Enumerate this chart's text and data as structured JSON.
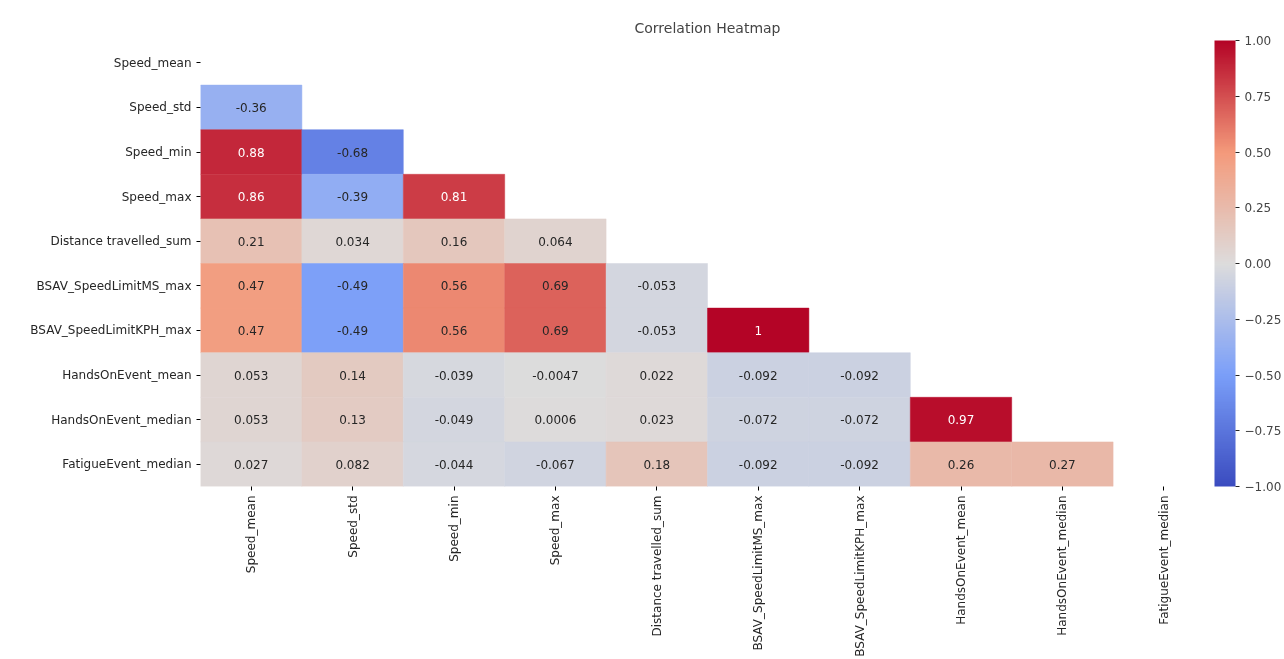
{
  "chart_data": {
    "type": "heatmap",
    "title": "Correlation Heatmap",
    "categories": [
      "Speed_mean",
      "Speed_std",
      "Speed_min",
      "Speed_max",
      "Distance travelled_sum",
      "BSAV_SpeedLimitMS_max",
      "BSAV_SpeedLimitKPH_max",
      "HandsOnEvent_mean",
      "HandsOnEvent_median",
      "FatigueEvent_median"
    ],
    "y_categories": [
      "Speed_mean",
      "Speed_std",
      "Speed_min",
      "Speed_max",
      "Distance travelled_sum",
      "BSAV_SpeedLimitMS_max",
      "BSAV_SpeedLimitKPH_max",
      "HandsOnEvent_mean",
      "HandsOnEvent_median",
      "FatigueEvent_median"
    ],
    "cells": [
      [
        null,
        null,
        null,
        null,
        null,
        null,
        null,
        null,
        null,
        null
      ],
      [
        -0.36,
        null,
        null,
        null,
        null,
        null,
        null,
        null,
        null,
        null
      ],
      [
        0.88,
        -0.68,
        null,
        null,
        null,
        null,
        null,
        null,
        null,
        null
      ],
      [
        0.86,
        -0.39,
        0.81,
        null,
        null,
        null,
        null,
        null,
        null,
        null
      ],
      [
        0.21,
        0.034,
        0.16,
        0.064,
        null,
        null,
        null,
        null,
        null,
        null
      ],
      [
        0.47,
        -0.49,
        0.56,
        0.69,
        -0.053,
        null,
        null,
        null,
        null,
        null
      ],
      [
        0.47,
        -0.49,
        0.56,
        0.69,
        -0.053,
        1,
        null,
        null,
        null,
        null
      ],
      [
        0.053,
        0.14,
        -0.039,
        -0.0047,
        0.022,
        -0.092,
        -0.092,
        null,
        null,
        null
      ],
      [
        0.053,
        0.13,
        -0.049,
        0.0006,
        0.023,
        -0.072,
        -0.072,
        0.97,
        null,
        null
      ],
      [
        0.027,
        0.082,
        -0.044,
        -0.067,
        0.18,
        -0.092,
        -0.092,
        0.26,
        0.27,
        null
      ]
    ],
    "data_labels": true,
    "clim": [
      -1.0,
      1.0
    ],
    "cticks": [
      {
        "value": -1.0,
        "label": "−1.00"
      },
      {
        "value": -0.75,
        "label": "−0.75"
      },
      {
        "value": -0.5,
        "label": "−0.50"
      },
      {
        "value": -0.25,
        "label": "−0.25"
      },
      {
        "value": 0.0,
        "label": "0.00"
      },
      {
        "value": 0.25,
        "label": "0.25"
      },
      {
        "value": 0.5,
        "label": "0.50"
      },
      {
        "value": 0.75,
        "label": "0.75"
      },
      {
        "value": 1.0,
        "label": "1.00"
      }
    ],
    "grid": false
  }
}
